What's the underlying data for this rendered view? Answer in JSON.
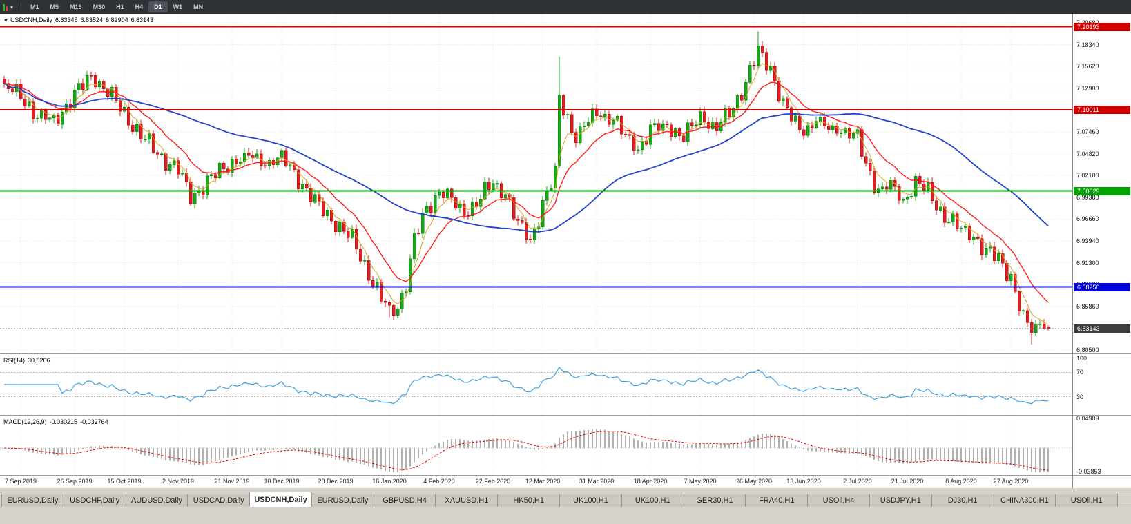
{
  "toolbar": {
    "timeframes": [
      "M1",
      "M5",
      "M15",
      "M30",
      "H1",
      "H4",
      "D1",
      "W1",
      "MN"
    ],
    "active": "D1"
  },
  "chart": {
    "symbol_label": "USDCNH,Daily",
    "ohlc": {
      "open": "6.83345",
      "high": "6.83524",
      "low": "6.82904",
      "close": "6.83143"
    },
    "price_ticks": [
      "7.20680",
      "7.18340",
      "7.15620",
      "7.12900",
      "7.10180",
      "7.07460",
      "7.04820",
      "7.02100",
      "6.99380",
      "6.96660",
      "6.93940",
      "6.91300",
      "6.88580",
      "6.85860",
      "6.83140",
      "6.80500"
    ],
    "axis_top": 7.2068,
    "axis_bottom": 6.805,
    "hlines": [
      {
        "value": 7.20193,
        "label": "7.20193",
        "color": "#d00000"
      },
      {
        "value": 7.10011,
        "label": "7.10011",
        "color": "#d00000"
      },
      {
        "value": 7.00029,
        "label": "7.00029",
        "color": "#00a400"
      },
      {
        "value": 6.8825,
        "label": "6.88250",
        "color": "#0000d8"
      }
    ],
    "current_price": {
      "value": 6.83143,
      "label": "6.83143",
      "tag_color": "#3f3f3f"
    },
    "dates": [
      "7 Sep 2019",
      "26 Sep 2019",
      "15 Oct 2019",
      "2 Nov 2019",
      "21 Nov 2019",
      "10 Dec 2019",
      "28 Dec 2019",
      "16 Jan 2020",
      "4 Feb 2020",
      "22 Feb 2020",
      "12 Mar 2020",
      "31 Mar 2020",
      "18 Apr 2020",
      "7 May 2020",
      "26 May 2020",
      "13 Jun 2020",
      "2 Jul 2020",
      "21 Jul 2020",
      "8 Aug 2020",
      "27 Aug 2020"
    ],
    "candle_up_color": "#18a818",
    "candle_down_color": "#e02020",
    "ma_lines": [
      {
        "period": 5,
        "type": "ema",
        "color": "#d9a520",
        "width": 1
      },
      {
        "period": 14,
        "type": "ema",
        "color": "#ff1a1a",
        "width": 1.4
      },
      {
        "period": 50,
        "type": "sma",
        "color": "#2242c8",
        "width": 1.8
      }
    ]
  },
  "candles": {
    "count": 253,
    "anchors": [
      [
        0,
        7.128
      ],
      [
        4,
        7.118
      ],
      [
        8,
        7.092
      ],
      [
        12,
        7.087
      ],
      [
        17,
        7.118
      ],
      [
        21,
        7.142
      ],
      [
        25,
        7.122
      ],
      [
        29,
        7.096
      ],
      [
        33,
        7.068
      ],
      [
        38,
        7.042
      ],
      [
        42,
        7.026
      ],
      [
        45,
        6.992
      ],
      [
        49,
        7.012
      ],
      [
        53,
        7.028
      ],
      [
        55,
        7.036
      ],
      [
        59,
        7.044
      ],
      [
        63,
        7.034
      ],
      [
        67,
        7.042
      ],
      [
        71,
        7.016
      ],
      [
        75,
        6.986
      ],
      [
        80,
        6.962
      ],
      [
        84,
        6.94
      ],
      [
        88,
        6.9
      ],
      [
        91,
        6.868
      ],
      [
        93,
        6.852
      ],
      [
        95,
        6.858
      ],
      [
        97,
        6.888
      ],
      [
        99,
        6.94
      ],
      [
        102,
        6.978
      ],
      [
        105,
        7.0
      ],
      [
        108,
        6.988
      ],
      [
        111,
        6.972
      ],
      [
        114,
        6.986
      ],
      [
        118,
        7.01
      ],
      [
        121,
        7.0
      ],
      [
        124,
        6.958
      ],
      [
        127,
        6.938
      ],
      [
        130,
        6.985
      ],
      [
        133,
        7.02
      ],
      [
        134,
        7.115
      ],
      [
        136,
        7.09
      ],
      [
        138,
        7.066
      ],
      [
        140,
        7.08
      ],
      [
        143,
        7.096
      ],
      [
        147,
        7.088
      ],
      [
        150,
        7.066
      ],
      [
        153,
        7.052
      ],
      [
        156,
        7.074
      ],
      [
        160,
        7.082
      ],
      [
        164,
        7.064
      ],
      [
        168,
        7.094
      ],
      [
        172,
        7.076
      ],
      [
        176,
        7.104
      ],
      [
        179,
        7.134
      ],
      [
        182,
        7.172
      ],
      [
        185,
        7.152
      ],
      [
        188,
        7.106
      ],
      [
        191,
        7.082
      ],
      [
        193,
        7.072
      ],
      [
        196,
        7.088
      ],
      [
        199,
        7.076
      ],
      [
        203,
        7.074
      ],
      [
        206,
        7.064
      ],
      [
        208,
        7.032
      ],
      [
        211,
        7.002
      ],
      [
        214,
        7.006
      ],
      [
        217,
        6.988
      ],
      [
        220,
        7.014
      ],
      [
        223,
        6.998
      ],
      [
        226,
        6.976
      ],
      [
        229,
        6.962
      ],
      [
        231,
        6.952
      ],
      [
        234,
        6.946
      ],
      [
        237,
        6.926
      ],
      [
        240,
        6.916
      ],
      [
        243,
        6.896
      ],
      [
        246,
        6.842
      ],
      [
        248,
        6.828
      ],
      [
        250,
        6.84
      ],
      [
        252,
        6.8314
      ]
    ],
    "wick_overrides": {
      "93": {
        "low": 6.8452
      },
      "134": {
        "high": 7.1651
      },
      "182": {
        "high": 7.1964
      },
      "248": {
        "low": 6.8117
      }
    }
  },
  "rsi": {
    "name": "RSI(14)",
    "value": "30.8266",
    "period": 14,
    "levels": [
      70,
      30
    ],
    "tick_values": [
      100,
      70,
      30
    ],
    "tick_labels": [
      "100",
      "70",
      "30"
    ],
    "line_color": "#3f9fdc"
  },
  "macd": {
    "name": "MACD(12,26,9)",
    "main_value": "-0.030215",
    "signal_value": "-0.032764",
    "fast": 12,
    "slow": 26,
    "signal": 9,
    "tick_values": [
      0.04909,
      -0.03853
    ],
    "tick_labels": [
      "0.04909",
      "-0.03853"
    ],
    "hist_color": "#b0b0b0",
    "signal_color": "#e00000"
  },
  "tabs": {
    "active_index": 4,
    "items": [
      "EURUSD,Daily",
      "USDCHF,Daily",
      "AUDUSD,Daily",
      "USDCAD,Daily",
      "USDCNH,Daily",
      "EURUSD,Daily",
      "GBPUSD,H4",
      "XAUUSD,H1",
      "HK50,H1",
      "UK100,H1",
      "UK100,H1",
      "GER30,H1",
      "FRA40,H1",
      "USOil,H4",
      "USDJPY,H1",
      "DJ30,H1",
      "CHINA300,H1",
      "USOil,H1"
    ]
  }
}
